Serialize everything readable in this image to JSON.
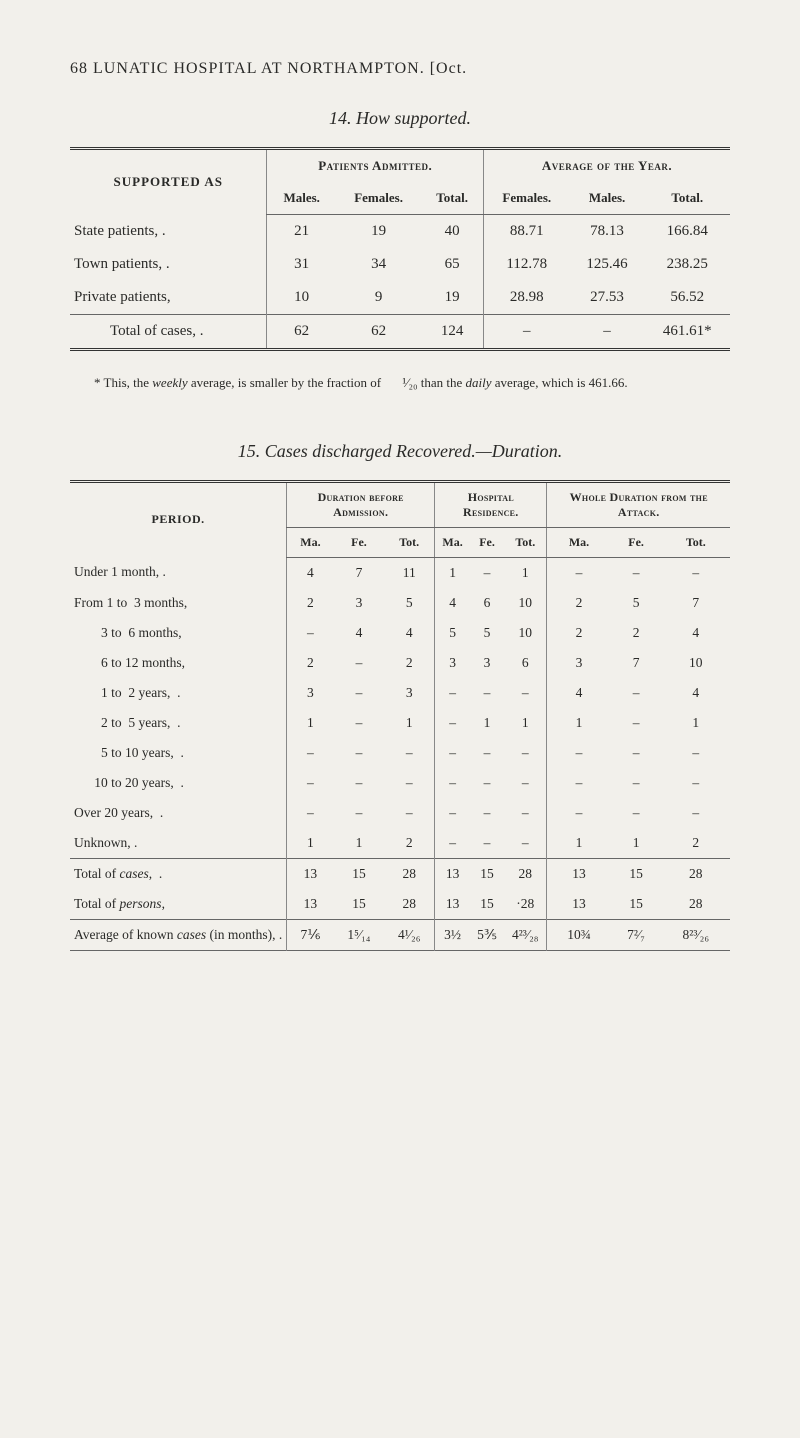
{
  "header": {
    "running": "68 LUNATIC HOSPITAL AT NORTHAMPTON. [Oct."
  },
  "section14": {
    "title": "14.  How supported."
  },
  "table1": {
    "stub_head": "SUPPORTED AS",
    "group_patients": "Patients Admitted.",
    "group_average": "Average of the Year.",
    "col_males": "Males.",
    "col_females": "Females.",
    "col_total": "Total.",
    "col_av_females": "Females.",
    "col_av_males": "Males.",
    "col_av_total": "Total.",
    "rows": [
      {
        "stub": "State patients,  .",
        "m": "21",
        "f": "19",
        "t": "40",
        "af": "88.71",
        "am": "78.13",
        "at": "166.84"
      },
      {
        "stub": "Town patients,  .",
        "m": "31",
        "f": "34",
        "t": "65",
        "af": "112.78",
        "am": "125.46",
        "at": "238.25"
      },
      {
        "stub": "Private patients,",
        "m": "10",
        "f": "9",
        "t": "19",
        "af": "28.98",
        "am": "27.53",
        "at": "56.52"
      }
    ],
    "total": {
      "stub": "Total of cases,  .",
      "m": "62",
      "f": "62",
      "t": "124",
      "af": "–",
      "am": "–",
      "at": "461.61*"
    }
  },
  "footnote14": {
    "text_a": "* This, the ",
    "weekly": "weekly",
    "text_b": " average, is smaller by the fraction of ",
    "frac": "¹⁄₂₀",
    "text_c": " than the ",
    "daily": "daily",
    "text_d": " average, which is 461.66."
  },
  "section15": {
    "title": "15.  Cases discharged Recovered.—Duration."
  },
  "table2": {
    "stub_head": "PERIOD.",
    "group_duration": "Duration before Admission.",
    "group_hospital": "Hospital Residence.",
    "group_whole": "Whole Duration from the Attack.",
    "col_ma": "Ma.",
    "col_fe": "Fe.",
    "col_tot": "Tot.",
    "rows": [
      {
        "stub": "Under 1 month, .",
        "d": [
          "4",
          "7",
          "11"
        ],
        "h": [
          "1",
          "–",
          "1"
        ],
        "w": [
          "–",
          "–",
          "–"
        ]
      },
      {
        "stub": "From 1 to  3 months,",
        "d": [
          "2",
          "3",
          "5"
        ],
        "h": [
          "4",
          "6",
          "10"
        ],
        "w": [
          "2",
          "5",
          "7"
        ]
      },
      {
        "stub": "        3 to  6 months,",
        "d": [
          "–",
          "4",
          "4"
        ],
        "h": [
          "5",
          "5",
          "10"
        ],
        "w": [
          "2",
          "2",
          "4"
        ]
      },
      {
        "stub": "        6 to 12 months,",
        "d": [
          "2",
          "–",
          "2"
        ],
        "h": [
          "3",
          "3",
          "6"
        ],
        "w": [
          "3",
          "7",
          "10"
        ]
      },
      {
        "stub": "        1 to  2 years,  .",
        "d": [
          "3",
          "–",
          "3"
        ],
        "h": [
          "–",
          "–",
          "–"
        ],
        "w": [
          "4",
          "–",
          "4"
        ]
      },
      {
        "stub": "        2 to  5 years,  .",
        "d": [
          "1",
          "–",
          "1"
        ],
        "h": [
          "–",
          "1",
          "1"
        ],
        "w": [
          "1",
          "–",
          "1"
        ]
      },
      {
        "stub": "        5 to 10 years,  .",
        "d": [
          "–",
          "–",
          "–"
        ],
        "h": [
          "–",
          "–",
          "–"
        ],
        "w": [
          "–",
          "–",
          "–"
        ]
      },
      {
        "stub": "      10 to 20 years,  .",
        "d": [
          "–",
          "–",
          "–"
        ],
        "h": [
          "–",
          "–",
          "–"
        ],
        "w": [
          "–",
          "–",
          "–"
        ]
      },
      {
        "stub": "Over 20 years,  .",
        "d": [
          "–",
          "–",
          "–"
        ],
        "h": [
          "–",
          "–",
          "–"
        ],
        "w": [
          "–",
          "–",
          "–"
        ]
      },
      {
        "stub": "Unknown, .",
        "d": [
          "1",
          "1",
          "2"
        ],
        "h": [
          "–",
          "–",
          "–"
        ],
        "w": [
          "1",
          "1",
          "2"
        ]
      }
    ],
    "total_cases": {
      "stub": "Total of cases,  .",
      "d": [
        "13",
        "15",
        "28"
      ],
      "h": [
        "13",
        "15",
        "28"
      ],
      "w": [
        "13",
        "15",
        "28"
      ]
    },
    "total_persons": {
      "stub": "Total of persons,",
      "d": [
        "13",
        "15",
        "28"
      ],
      "h": [
        "13",
        "15",
        "·28"
      ],
      "w": [
        "13",
        "15",
        "28"
      ]
    },
    "average": {
      "stub": "Average of known cases (in months), .",
      "d": [
        "7⅙",
        "1⁵⁄₁₄",
        "4¹⁄₂₆"
      ],
      "h": [
        "3½",
        "5⅗",
        "4²³⁄₂₈"
      ],
      "w": [
        "10¾",
        "7²⁄₇",
        "8²³⁄₂₆"
      ]
    }
  }
}
